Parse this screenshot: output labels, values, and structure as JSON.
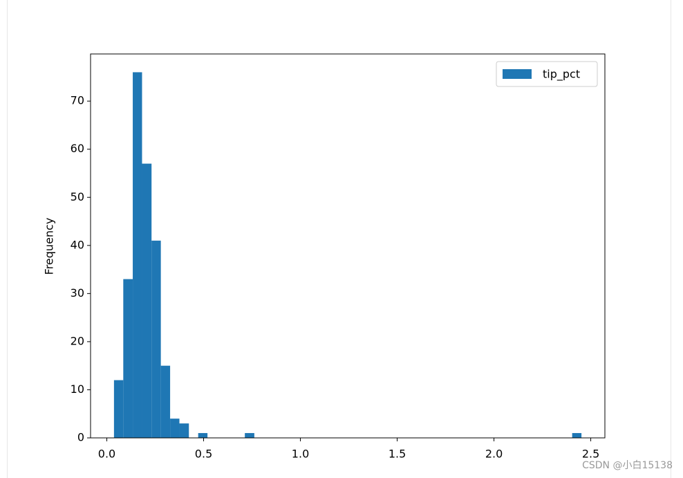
{
  "chart_data": {
    "type": "histogram",
    "ylabel": "Frequency",
    "bins": [
      0.037,
      0.085,
      0.134,
      0.182,
      0.231,
      0.279,
      0.327,
      0.375,
      0.424,
      0.472,
      0.52,
      0.569,
      0.617,
      0.665,
      0.713,
      0.762,
      0.81,
      0.858,
      0.907,
      0.955,
      1.003,
      1.052,
      1.1,
      1.148,
      1.196,
      1.245,
      1.293,
      1.341,
      1.39,
      1.438,
      1.486,
      1.535,
      1.583,
      1.631,
      1.68,
      1.728,
      1.776,
      1.824,
      1.873,
      1.921,
      1.969,
      2.018,
      2.066,
      2.114,
      2.163,
      2.211,
      2.259,
      2.307,
      2.356,
      2.404,
      2.452
    ],
    "series": [
      {
        "name": "tip_pct",
        "color": "#1f77b4",
        "values": [
          12,
          33,
          76,
          57,
          41,
          15,
          4,
          3,
          0,
          1,
          0,
          0,
          0,
          0,
          1,
          0,
          0,
          0,
          0,
          0,
          0,
          0,
          0,
          0,
          0,
          0,
          0,
          0,
          0,
          0,
          0,
          0,
          0,
          0,
          0,
          0,
          0,
          0,
          0,
          0,
          0,
          0,
          0,
          0,
          0,
          0,
          0,
          0,
          0,
          1
        ]
      }
    ],
    "xlim": [
      -0.084,
      2.573
    ],
    "xticks": [
      {
        "value": 0,
        "label": "0.0"
      },
      0.5,
      {
        "value": 1,
        "label": "1.0"
      },
      1.5,
      {
        "value": 2,
        "label": "2.0"
      },
      2.5
    ],
    "ylim": [
      0,
      79.8
    ],
    "yticks": [
      0,
      10,
      20,
      30,
      40,
      50,
      60,
      70
    ],
    "legend": "upper right",
    "watermark": "CSDN @小白15138"
  }
}
